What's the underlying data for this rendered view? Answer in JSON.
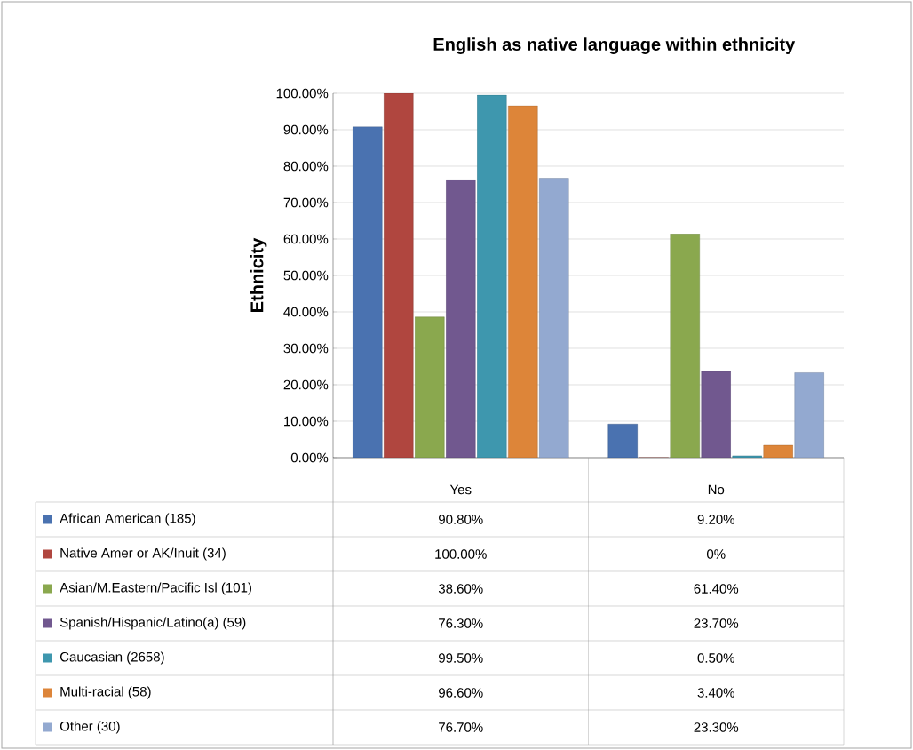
{
  "chart_data": {
    "type": "bar",
    "title": "English as native language within ethnicity",
    "ylabel": "Ethnicity",
    "categories": [
      "Yes",
      "No"
    ],
    "series": [
      {
        "name": "African American (185)",
        "color": "#4a72b0",
        "values": [
          90.8,
          9.2
        ],
        "value_labels": [
          "90.80%",
          "9.20%"
        ]
      },
      {
        "name": "Native Amer or AK/Inuit (34)",
        "color": "#b0463f",
        "values": [
          100.0,
          0
        ],
        "value_labels": [
          "100.00%",
          "0%"
        ]
      },
      {
        "name": "Asian/M.Eastern/Pacific Isl (101)",
        "color": "#8aa84e",
        "values": [
          38.6,
          61.4
        ],
        "value_labels": [
          "38.60%",
          "61.40%"
        ]
      },
      {
        "name": "Spanish/Hispanic/Latino(a) (59)",
        "color": "#71588f",
        "values": [
          76.3,
          23.7
        ],
        "value_labels": [
          "76.30%",
          "23.70%"
        ]
      },
      {
        "name": "Caucasian (2658)",
        "color": "#3e97ae",
        "values": [
          99.5,
          0.5
        ],
        "value_labels": [
          "99.50%",
          "0.50%"
        ]
      },
      {
        "name": "Multi-racial (58)",
        "color": "#dd8539",
        "values": [
          96.6,
          3.4
        ],
        "value_labels": [
          "96.60%",
          "3.40%"
        ]
      },
      {
        "name": "Other (30)",
        "color": "#93a9d0",
        "values": [
          76.7,
          23.3
        ],
        "value_labels": [
          "76.70%",
          "23.30%"
        ]
      }
    ],
    "ylim": [
      0,
      100
    ],
    "yticks": [
      {
        "value": 0,
        "label": "0.00%"
      },
      {
        "value": 10,
        "label": "10.00%"
      },
      {
        "value": 20,
        "label": "20.00%"
      },
      {
        "value": 30,
        "label": "30.00%"
      },
      {
        "value": 40,
        "label": "40.00%"
      },
      {
        "value": 50,
        "label": "50.00%"
      },
      {
        "value": 60,
        "label": "60.00%"
      },
      {
        "value": 70,
        "label": "70.00%"
      },
      {
        "value": 80,
        "label": "80.00%"
      },
      {
        "value": 90,
        "label": "90.00%"
      },
      {
        "value": 100,
        "label": "100.00%"
      }
    ],
    "grid": "y",
    "legend": "bottom"
  }
}
